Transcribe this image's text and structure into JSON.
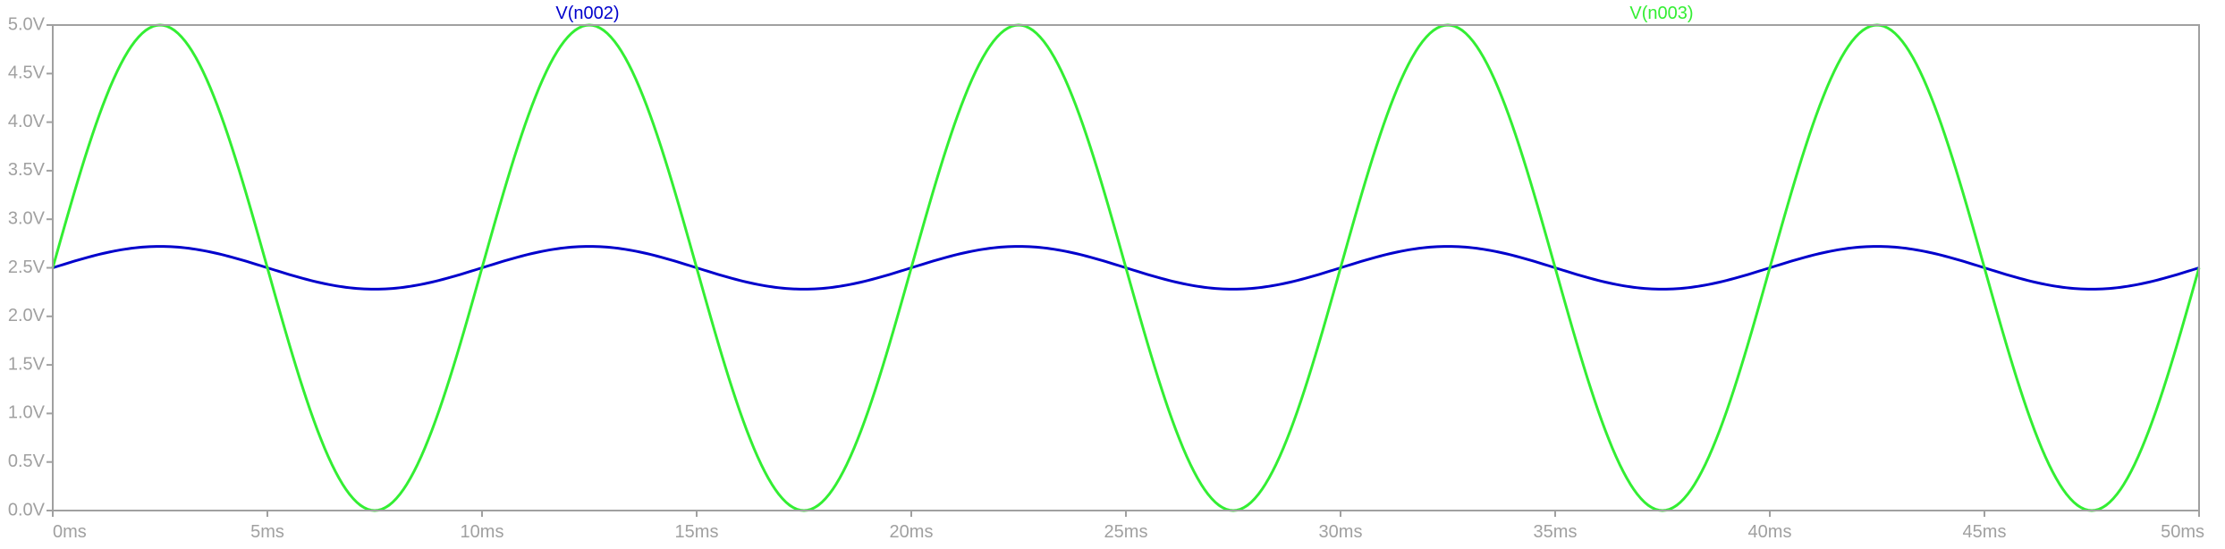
{
  "chart_data": {
    "type": "line",
    "title": "",
    "xlabel": "",
    "ylabel": "",
    "xlim": [
      0,
      50
    ],
    "ylim": [
      0,
      5
    ],
    "grid": false,
    "legend_placement": "top",
    "x_ticks": [
      0,
      5,
      10,
      15,
      20,
      25,
      30,
      35,
      40,
      45,
      50
    ],
    "x_tick_labels": [
      "0ms",
      "5ms",
      "10ms",
      "15ms",
      "20ms",
      "25ms",
      "30ms",
      "35ms",
      "40ms",
      "45ms",
      "50ms"
    ],
    "y_ticks": [
      0,
      0.5,
      1,
      1.5,
      2,
      2.5,
      3,
      3.5,
      4,
      4.5,
      5
    ],
    "y_tick_labels": [
      "0.0V",
      "0.5V",
      "1.0V",
      "1.5V",
      "2.0V",
      "2.5V",
      "3.0V",
      "3.5V",
      "4.0V",
      "4.5V",
      "5.0V"
    ],
    "x_unit": "ms",
    "y_unit": "V",
    "axis_color": "#a0a0a0",
    "series": [
      {
        "name": "V(n002)",
        "color": "#0000cc",
        "x": [
          0,
          2.5,
          5,
          7.5,
          10,
          12.5,
          15,
          17.5,
          20,
          22.5,
          25,
          27.5,
          30,
          32.5,
          35,
          37.5,
          40,
          42.5,
          45,
          47.5,
          50
        ],
        "values": [
          2.5,
          2.72,
          2.5,
          2.28,
          2.5,
          2.72,
          2.5,
          2.28,
          2.5,
          2.72,
          2.5,
          2.28,
          2.5,
          2.72,
          2.5,
          2.28,
          2.5,
          2.72,
          2.5,
          2.28,
          2.5
        ]
      },
      {
        "name": "V(n003)",
        "color": "#33ee33",
        "x": [
          0,
          2.5,
          5,
          7.5,
          10,
          12.5,
          15,
          17.5,
          20,
          22.5,
          25,
          27.5,
          30,
          32.5,
          35,
          37.5,
          40,
          42.5,
          45,
          47.5,
          50
        ],
        "values": [
          2.5,
          5.0,
          2.5,
          0.0,
          2.5,
          5.0,
          2.5,
          0.0,
          2.5,
          5.0,
          2.5,
          0.0,
          2.5,
          5.0,
          2.5,
          0.0,
          2.5,
          5.0,
          2.5,
          0.0,
          2.5
        ]
      }
    ]
  }
}
